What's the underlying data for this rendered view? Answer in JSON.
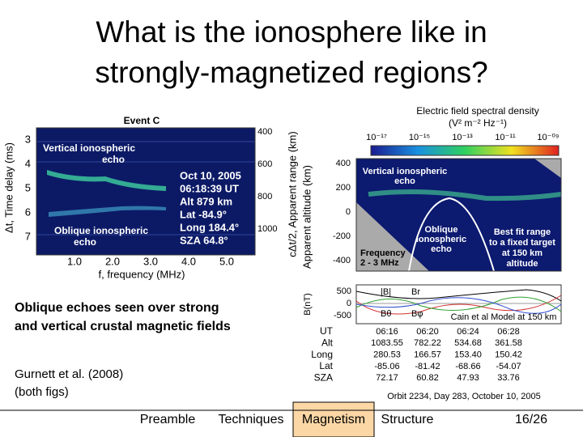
{
  "header": {
    "title": [
      "What is the ionosphere like in",
      "strongly-magnetized regions?"
    ]
  },
  "left_figure": {
    "event": "Event C",
    "y_label": "Δt, Time delay (ms)",
    "y_ticks": [
      "3",
      "4",
      "5",
      "6",
      "7"
    ],
    "y2_label": "cΔt/2, Apparent range (km)",
    "y2_ticks": [
      "400",
      "600",
      "800",
      "1000"
    ],
    "x_label": "f, frequency (MHz)",
    "x_ticks": [
      "1.0",
      "2.0",
      "3.0",
      "4.0",
      "5.0"
    ],
    "annotations": [
      "Vertical ionospheric",
      "echo",
      "Oblique ionospheric",
      "echo"
    ],
    "info": [
      "Oct 10, 2005",
      "06:18:39 UT",
      "Alt  879 km",
      "Lat -84.9°",
      "Long 184.4°",
      "SZA 64.8°"
    ]
  },
  "right_figure": {
    "colorbar_title": [
      "Electric field spectral density",
      "(V² m⁻² Hz⁻¹)"
    ],
    "colorbar_ticks": [
      "10⁻¹⁷",
      "10⁻¹⁵",
      "10⁻¹³",
      "10⁻¹¹",
      "10⁻⁰⁹"
    ],
    "y_label": "Apparent altitude (km)",
    "y_ticks": [
      "400",
      "200",
      "0",
      "-200",
      "-400"
    ],
    "annotations": {
      "vertical": [
        "Vertical ionospheric",
        "echo"
      ],
      "oblique": [
        "Oblique",
        "ionospheric",
        "echo"
      ],
      "fit": [
        "Best fit range",
        "to a fixed target",
        "at 150 km",
        "altitude"
      ],
      "frequency": [
        "Frequency",
        "2 - 3 MHz"
      ]
    },
    "b_label": "B(nT)",
    "b_ticks": [
      "500",
      "0",
      "-500"
    ],
    "b_legend": [
      "|B|",
      "Br",
      "Bθ",
      "Bφ"
    ],
    "model": "Cain et al Model at 150 km",
    "table": {
      "labels": [
        "UT",
        "Alt",
        "Long",
        "Lat",
        "SZA"
      ],
      "rows": [
        [
          "06:16",
          "06:20",
          "06:24",
          "06:28"
        ],
        [
          "1083.55",
          "782.22",
          "534.68",
          "361.58"
        ],
        [
          "280.53",
          "166.57",
          "153.40",
          "150.42"
        ],
        [
          "-85.06",
          "-81.42",
          "-68.66",
          "-54.07"
        ],
        [
          "72.17",
          "60.82",
          "47.93",
          "33.76"
        ]
      ]
    },
    "orbit": "Orbit 2234, Day 283, October 10, 2005"
  },
  "caption": [
    "Oblique echoes seen over strong",
    "and vertical crustal magnetic fields"
  ],
  "citation": [
    "Gurnett et al. (2008)",
    "(both figs)"
  ],
  "nav": {
    "items": [
      "Preamble",
      "Techniques",
      "Magnetism",
      "Structure"
    ],
    "active": 2,
    "page": "16/26"
  }
}
